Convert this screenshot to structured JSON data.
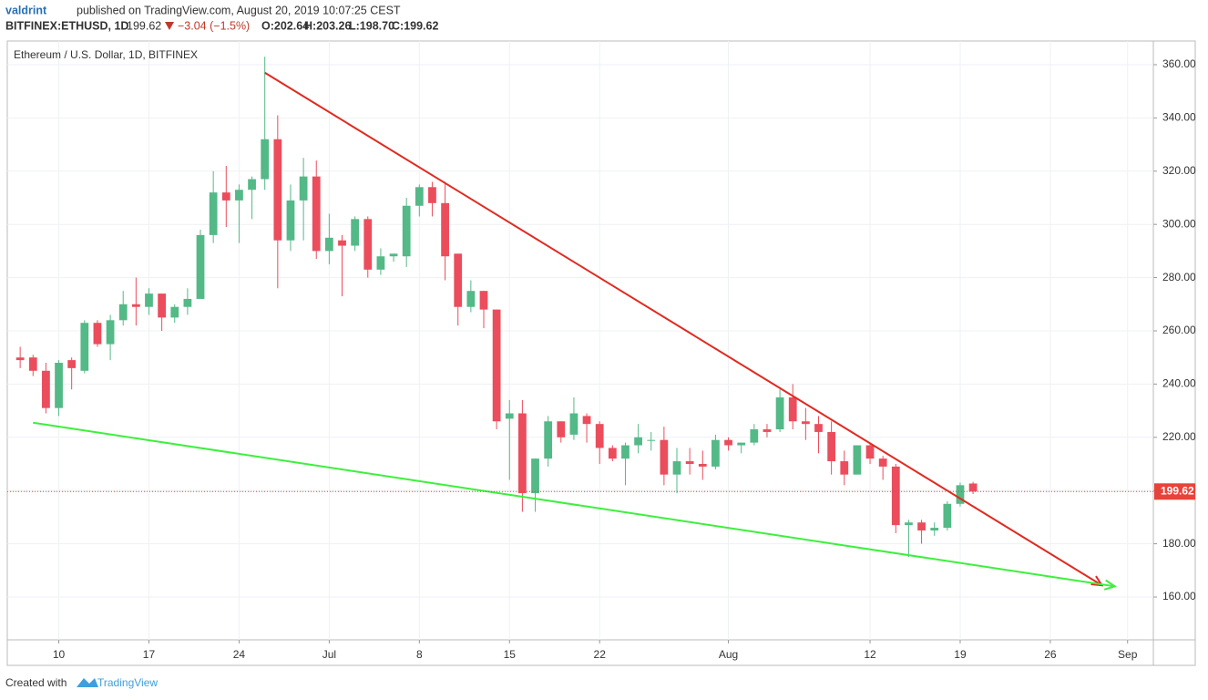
{
  "header": {
    "author": "valdrint",
    "published": "published on TradingView.com, August 20, 2019 10:07:25 CEST",
    "symbol": "BITFINEX:ETHUSD, 1D",
    "price": "199.62",
    "change": "−3.04 (−1.5%)",
    "ohlc": [
      "O:202.64",
      "H:203.26",
      "L:198.70",
      "C:199.62"
    ]
  },
  "footer": {
    "created": "Created with",
    "brand": "TradingView"
  },
  "chart_data": {
    "type": "candlestick",
    "title": "Ethereum / U.S. Dollar, 1D, BITFINEX",
    "up_color": "#53b987",
    "down_color": "#eb4d5c",
    "grid": true,
    "x": [
      "2019-06-07",
      "2019-06-08",
      "2019-06-09",
      "2019-06-10",
      "2019-06-11",
      "2019-06-12",
      "2019-06-13",
      "2019-06-14",
      "2019-06-15",
      "2019-06-16",
      "2019-06-17",
      "2019-06-18",
      "2019-06-19",
      "2019-06-20",
      "2019-06-21",
      "2019-06-22",
      "2019-06-23",
      "2019-06-24",
      "2019-06-25",
      "2019-06-26",
      "2019-06-27",
      "2019-06-28",
      "2019-06-29",
      "2019-06-30",
      "2019-07-01",
      "2019-07-02",
      "2019-07-03",
      "2019-07-04",
      "2019-07-05",
      "2019-07-06",
      "2019-07-07",
      "2019-07-08",
      "2019-07-09",
      "2019-07-10",
      "2019-07-11",
      "2019-07-12",
      "2019-07-13",
      "2019-07-14",
      "2019-07-15",
      "2019-07-16",
      "2019-07-17",
      "2019-07-18",
      "2019-07-19",
      "2019-07-20",
      "2019-07-21",
      "2019-07-22",
      "2019-07-23",
      "2019-07-24",
      "2019-07-25",
      "2019-07-26",
      "2019-07-27",
      "2019-07-28",
      "2019-07-29",
      "2019-07-30",
      "2019-07-31",
      "2019-08-01",
      "2019-08-02",
      "2019-08-03",
      "2019-08-04",
      "2019-08-05",
      "2019-08-06",
      "2019-08-07",
      "2019-08-08",
      "2019-08-09",
      "2019-08-10",
      "2019-08-11",
      "2019-08-12",
      "2019-08-13",
      "2019-08-14",
      "2019-08-15",
      "2019-08-16",
      "2019-08-17",
      "2019-08-18",
      "2019-08-19",
      "2019-08-20"
    ],
    "open": [
      250,
      250,
      245,
      231,
      249,
      245,
      263,
      255,
      264,
      270,
      269,
      274,
      265,
      269,
      272,
      296,
      312,
      309,
      313,
      317,
      332,
      294,
      309,
      318,
      290,
      294,
      292,
      302,
      283,
      288,
      288,
      307,
      314,
      308,
      289,
      269,
      275,
      268,
      227,
      229,
      199,
      212,
      226,
      221,
      228,
      225,
      216,
      212,
      217,
      219,
      219,
      206,
      211,
      210,
      209,
      219,
      217,
      218,
      223,
      223,
      235,
      226,
      225,
      222,
      211,
      206,
      217,
      212,
      209,
      187,
      188,
      185,
      186,
      195,
      202.64
    ],
    "high": [
      254,
      251,
      248,
      249,
      250,
      264,
      264,
      266,
      275,
      280,
      276,
      274,
      270,
      276,
      298,
      320,
      322,
      315,
      318,
      363,
      341,
      315,
      325,
      324,
      304,
      296,
      303,
      303,
      291,
      289,
      310,
      315,
      316,
      316,
      289,
      279,
      275,
      268,
      234,
      234,
      212,
      228,
      226,
      235,
      229,
      226,
      217,
      218,
      225,
      222,
      224,
      216,
      216,
      215,
      221,
      220,
      218,
      225,
      225,
      238,
      240,
      231,
      228,
      226,
      215,
      217,
      218,
      213,
      210,
      189,
      189,
      188,
      196,
      203,
      203.26
    ],
    "low": [
      246,
      243,
      229,
      228,
      238,
      244,
      254,
      249,
      262,
      262,
      266,
      260,
      263,
      266,
      272,
      293,
      299,
      293,
      302,
      313,
      276,
      290,
      294,
      287,
      285,
      273,
      290,
      280,
      281,
      286,
      284,
      303,
      303,
      279,
      262,
      267,
      261,
      223,
      204,
      192,
      192,
      209,
      218,
      219,
      218,
      210,
      211,
      202,
      214,
      215,
      202,
      199,
      206,
      204,
      208,
      215,
      214,
      217,
      220,
      222,
      223,
      219,
      214,
      206,
      202,
      206,
      210,
      204,
      184,
      175,
      180,
      183,
      185,
      194,
      198.7
    ],
    "close": [
      249,
      245,
      231,
      248,
      246,
      263,
      255,
      264,
      270,
      269,
      274,
      265,
      269,
      272,
      296,
      312,
      309,
      313,
      317,
      332,
      294,
      309,
      318,
      290,
      295,
      292,
      302,
      283,
      288,
      289,
      307,
      314,
      308,
      288,
      269,
      275,
      268,
      226,
      229,
      199,
      212,
      226,
      220,
      229,
      225,
      216,
      212,
      217,
      220,
      219,
      206,
      211,
      210,
      209,
      219,
      217,
      218,
      223,
      222,
      235,
      226,
      225,
      222,
      211,
      206,
      217,
      212,
      209,
      187,
      188,
      185,
      186,
      195,
      202,
      199.62
    ],
    "last_price": 199.62,
    "last_price_color": "#e8433a",
    "trendlines": [
      {
        "color": "#e02a20",
        "x": [
          "2019-06-26",
          "2019-08-30"
        ],
        "y": [
          357,
          164.4
        ]
      },
      {
        "color": "#3cf03c",
        "x": [
          "2019-06-08",
          "2019-08-31"
        ],
        "y": [
          225.5,
          164
        ]
      }
    ],
    "xlim": [
      "2019-06-06",
      "2019-09-03"
    ],
    "ylim": [
      143.9,
      368.9
    ],
    "xticks": [
      {
        "value": "2019-06-10",
        "label": "10"
      },
      {
        "value": "2019-06-17",
        "label": "17"
      },
      {
        "value": "2019-06-24",
        "label": "24"
      },
      {
        "value": "2019-07-01",
        "label": "Jul"
      },
      {
        "value": "2019-07-08",
        "label": "8"
      },
      {
        "value": "2019-07-15",
        "label": "15"
      },
      {
        "value": "2019-07-22",
        "label": "22"
      },
      {
        "value": "2019-08-01",
        "label": "Aug"
      },
      {
        "value": "2019-08-12",
        "label": "12"
      },
      {
        "value": "2019-08-19",
        "label": "19"
      },
      {
        "value": "2019-08-26",
        "label": "26"
      },
      {
        "value": "2019-09-01",
        "label": "Sep"
      }
    ],
    "yticks": [
      {
        "value": 160,
        "label": "160.00"
      },
      {
        "value": 180,
        "label": "180.00"
      },
      {
        "value": 200,
        "label": "200.00"
      },
      {
        "value": 220,
        "label": "220.00"
      },
      {
        "value": 240,
        "label": "240.00"
      },
      {
        "value": 260,
        "label": "260.00"
      },
      {
        "value": 280,
        "label": "280.00"
      },
      {
        "value": 300,
        "label": "300.00"
      },
      {
        "value": 320,
        "label": "320.00"
      },
      {
        "value": 340,
        "label": "340.00"
      },
      {
        "value": 360,
        "label": "360.00"
      }
    ]
  }
}
